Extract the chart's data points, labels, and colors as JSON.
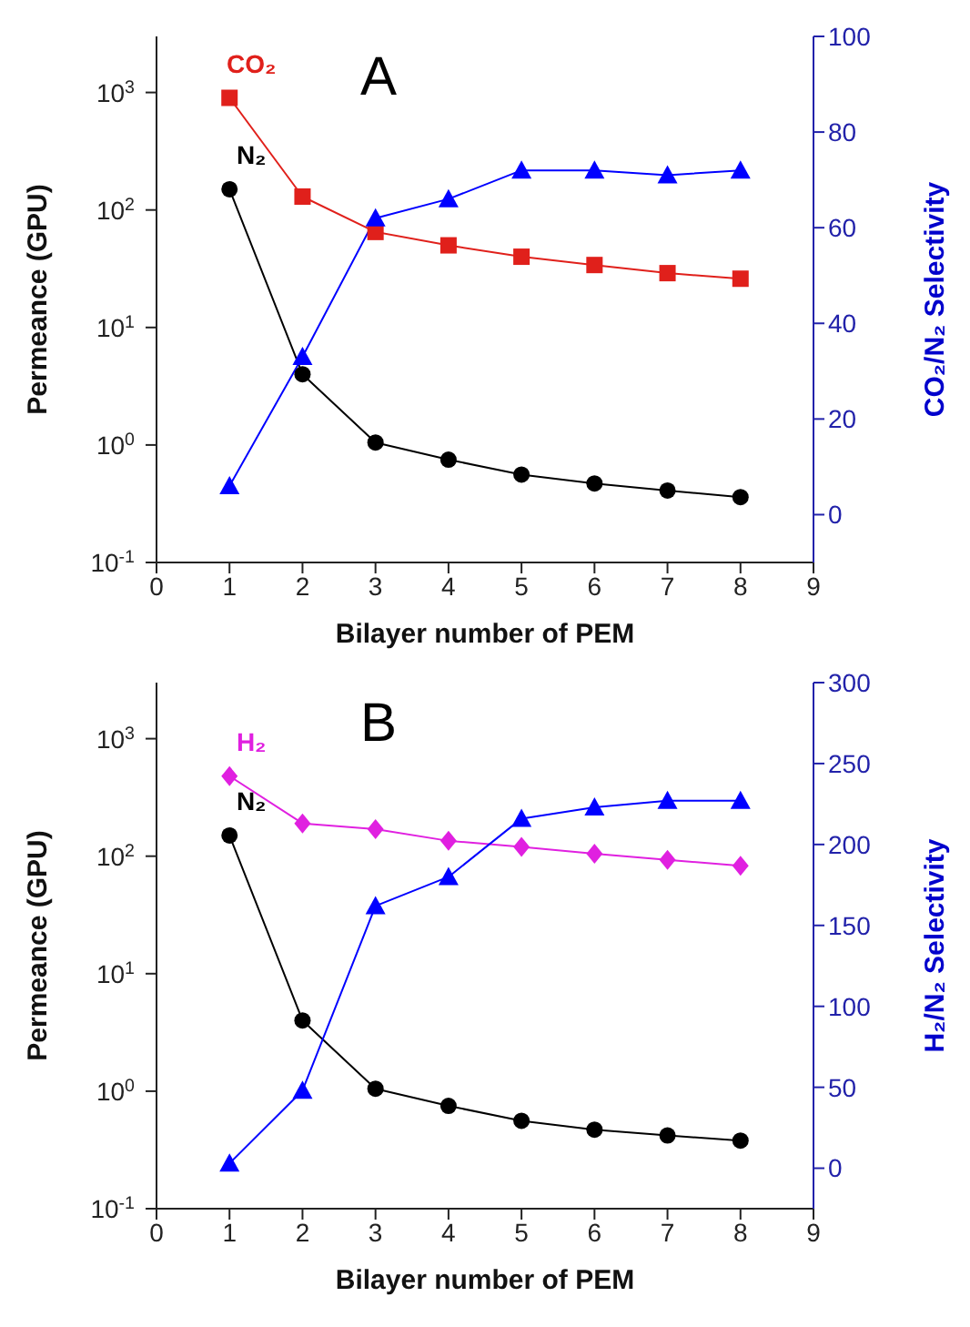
{
  "chart_data": [
    {
      "type": "line",
      "xlabel": "Bilayer number of PEM",
      "ylabel": "Permeance (GPU)",
      "y2label": "CO₂/N₂ Selectivity",
      "annotations": [
        "A"
      ],
      "log": "y",
      "grid": false,
      "legend": false,
      "x": [
        1,
        2,
        3,
        4,
        5,
        6,
        7,
        8
      ],
      "xlim": [
        0,
        9
      ],
      "xticks": [
        0,
        1,
        2,
        3,
        4,
        5,
        6,
        7,
        8,
        9
      ],
      "ylim": [
        0.1,
        3000
      ],
      "yticks": [
        {
          "value": 0.1,
          "label": "10$^{-1}$"
        },
        {
          "value": 1,
          "label": "10$^{0}$"
        },
        {
          "value": 10,
          "label": "10$^{1}$"
        },
        {
          "value": 100,
          "label": "10$^{2}$"
        },
        {
          "value": 1000,
          "label": "10$^{3}$"
        }
      ],
      "y2lim": [
        -10,
        100
      ],
      "y2ticks": [
        0,
        20,
        40,
        60,
        80,
        100
      ],
      "series": [
        {
          "name": "CO₂",
          "color": "#e0201b",
          "marker": "square",
          "values": [
            900,
            130,
            65,
            50,
            40,
            34,
            29,
            26
          ]
        },
        {
          "name": "N₂",
          "color": "#000000",
          "marker": "circle",
          "values": [
            150,
            4,
            1.05,
            0.75,
            0.56,
            0.47,
            0.41,
            0.36
          ]
        },
        {
          "color": "#0000ff",
          "marker": "triangle",
          "axis": "y2",
          "values": [
            6,
            33,
            62,
            66,
            72,
            72,
            71,
            72
          ]
        }
      ]
    },
    {
      "type": "line",
      "xlabel": "Bilayer number of PEM",
      "ylabel": "Permeance (GPU)",
      "y2label": "H₂/N₂ Selectivity",
      "annotations": [
        "B"
      ],
      "log": "y",
      "grid": false,
      "legend": false,
      "x": [
        1,
        2,
        3,
        4,
        5,
        6,
        7,
        8
      ],
      "xlim": [
        0,
        9
      ],
      "xticks": [
        0,
        1,
        2,
        3,
        4,
        5,
        6,
        7,
        8,
        9
      ],
      "ylim": [
        0.1,
        3000
      ],
      "yticks": [
        {
          "value": 0.1,
          "label": "10$^{-1}$"
        },
        {
          "value": 1,
          "label": "10$^{0}$"
        },
        {
          "value": 10,
          "label": "10$^{1}$"
        },
        {
          "value": 100,
          "label": "10$^{2}$"
        },
        {
          "value": 1000,
          "label": "10$^{3}$"
        }
      ],
      "y2lim": [
        -25,
        300
      ],
      "y2ticks": [
        0,
        50,
        100,
        150,
        200,
        250,
        300
      ],
      "series": [
        {
          "name": "H₂",
          "color": "#e020e0",
          "marker": "diamond",
          "values": [
            480,
            190,
            170,
            135,
            120,
            105,
            93,
            83
          ]
        },
        {
          "name": "N₂",
          "color": "#000000",
          "marker": "circle",
          "values": [
            150,
            4,
            1.05,
            0.75,
            0.56,
            0.47,
            0.42,
            0.38
          ]
        },
        {
          "color": "#0000ff",
          "marker": "triangle",
          "axis": "y2",
          "values": [
            3,
            48,
            162,
            180,
            216,
            223,
            227,
            227
          ]
        }
      ]
    }
  ]
}
